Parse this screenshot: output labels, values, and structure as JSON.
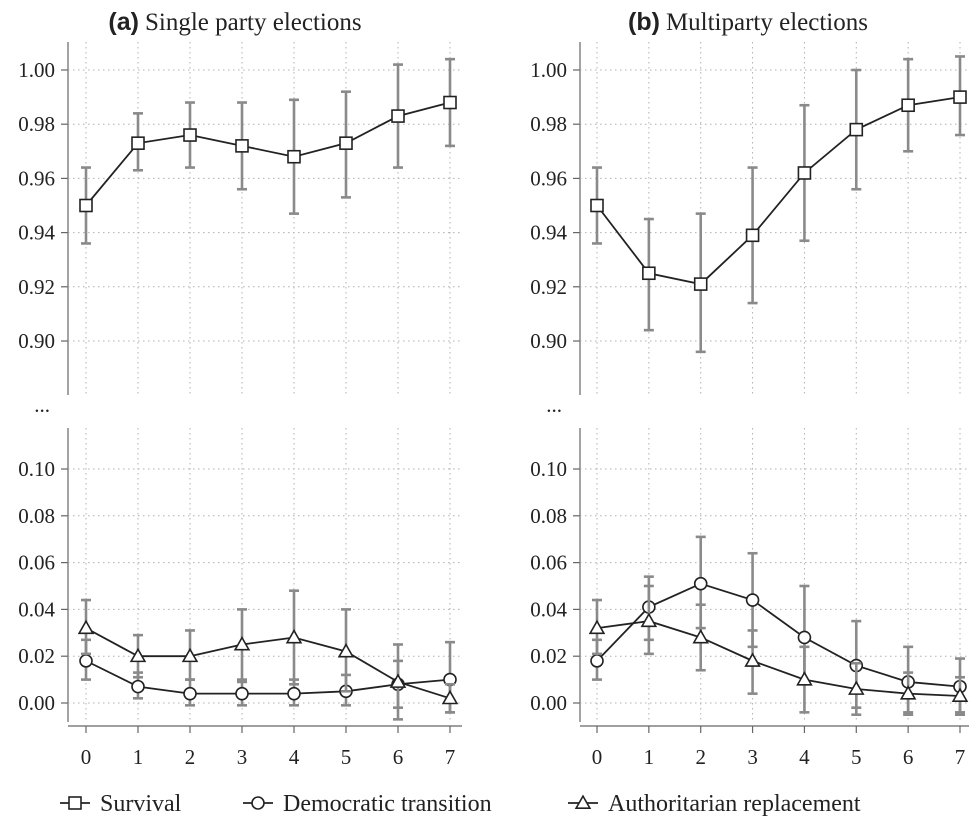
{
  "chart_data": [
    {
      "type": "line",
      "panel": "(a)",
      "title": "Single party elections",
      "x": [
        0,
        1,
        2,
        3,
        4,
        5,
        6,
        7
      ],
      "upper_axis": {
        "ylim": [
          0.88,
          1.0
        ],
        "ticks": [
          "1.00",
          "0.98",
          "0.96",
          "0.94",
          "0.92",
          "0.90"
        ],
        "tick_values": [
          1.0,
          0.98,
          0.96,
          0.94,
          0.92,
          0.9
        ]
      },
      "lower_axis": {
        "ylim": [
          -0.008,
          0.12
        ],
        "ticks": [
          "0.10",
          "0.08",
          "0.06",
          "0.04",
          "0.02",
          "0.00"
        ],
        "tick_values": [
          0.1,
          0.08,
          0.06,
          0.04,
          0.02,
          0.0
        ]
      },
      "axis_break": "...",
      "grid": true,
      "series": [
        {
          "name": "Survival",
          "marker": "square",
          "axis": "upper",
          "values": [
            0.95,
            0.973,
            0.976,
            0.972,
            0.968,
            0.973,
            0.983,
            0.988
          ],
          "ci_low": [
            0.936,
            0.963,
            0.964,
            0.956,
            0.947,
            0.953,
            0.964,
            0.972
          ],
          "ci_high": [
            0.964,
            0.984,
            0.988,
            0.988,
            0.989,
            0.992,
            1.002,
            1.004
          ]
        },
        {
          "name": "Democratic transition",
          "marker": "circle",
          "axis": "lower",
          "values": [
            0.018,
            0.007,
            0.004,
            0.004,
            0.004,
            0.005,
            0.008,
            0.01
          ],
          "ci_low": [
            0.01,
            0.002,
            -0.001,
            -0.001,
            -0.001,
            -0.001,
            -0.002,
            -0.004
          ],
          "ci_high": [
            0.027,
            0.013,
            0.01,
            0.009,
            0.01,
            0.012,
            0.018,
            0.026
          ]
        },
        {
          "name": "Authoritarian replacement",
          "marker": "triangle",
          "axis": "lower",
          "values": [
            0.032,
            0.02,
            0.02,
            0.025,
            0.028,
            0.022,
            0.009,
            0.002
          ],
          "ci_low": [
            0.021,
            0.011,
            0.01,
            0.01,
            0.008,
            0.005,
            -0.007,
            -0.004
          ],
          "ci_high": [
            0.044,
            0.029,
            0.031,
            0.04,
            0.048,
            0.04,
            0.025,
            0.008
          ]
        }
      ]
    },
    {
      "type": "line",
      "panel": "(b)",
      "title": "Multiparty elections",
      "x": [
        0,
        1,
        2,
        3,
        4,
        5,
        6,
        7
      ],
      "upper_axis": {
        "ylim": [
          0.88,
          1.0
        ],
        "ticks": [
          "1.00",
          "0.98",
          "0.96",
          "0.94",
          "0.92",
          "0.90"
        ],
        "tick_values": [
          1.0,
          0.98,
          0.96,
          0.94,
          0.92,
          0.9
        ]
      },
      "lower_axis": {
        "ylim": [
          -0.008,
          0.12
        ],
        "ticks": [
          "0.10",
          "0.08",
          "0.06",
          "0.04",
          "0.02",
          "0.00"
        ],
        "tick_values": [
          0.1,
          0.08,
          0.06,
          0.04,
          0.02,
          0.0
        ]
      },
      "axis_break": "...",
      "grid": true,
      "series": [
        {
          "name": "Survival",
          "marker": "square",
          "axis": "upper",
          "values": [
            0.95,
            0.925,
            0.921,
            0.939,
            0.962,
            0.978,
            0.987,
            0.99
          ],
          "ci_low": [
            0.936,
            0.904,
            0.896,
            0.914,
            0.937,
            0.956,
            0.97,
            0.976
          ],
          "ci_high": [
            0.964,
            0.945,
            0.947,
            0.964,
            0.987,
            1.0,
            1.004,
            1.005
          ]
        },
        {
          "name": "Democratic transition",
          "marker": "circle",
          "axis": "lower",
          "values": [
            0.018,
            0.041,
            0.051,
            0.044,
            0.028,
            0.016,
            0.009,
            0.007
          ],
          "ci_low": [
            0.01,
            0.027,
            0.032,
            0.024,
            0.008,
            -0.002,
            -0.004,
            -0.004
          ],
          "ci_high": [
            0.027,
            0.054,
            0.071,
            0.064,
            0.05,
            0.035,
            0.024,
            0.019
          ]
        },
        {
          "name": "Authoritarian replacement",
          "marker": "triangle",
          "axis": "lower",
          "values": [
            0.032,
            0.035,
            0.028,
            0.018,
            0.01,
            0.006,
            0.004,
            0.003
          ],
          "ci_low": [
            0.021,
            0.021,
            0.014,
            0.004,
            -0.004,
            -0.005,
            -0.005,
            -0.005
          ],
          "ci_high": [
            0.044,
            0.05,
            0.042,
            0.031,
            0.024,
            0.017,
            0.013,
            0.011
          ]
        }
      ]
    }
  ],
  "legend": {
    "placement": "bottom",
    "items": [
      {
        "label": "Survival",
        "marker": "square"
      },
      {
        "label": "Democratic transition",
        "marker": "circle"
      },
      {
        "label": "Authoritarian replacement",
        "marker": "triangle"
      }
    ]
  }
}
